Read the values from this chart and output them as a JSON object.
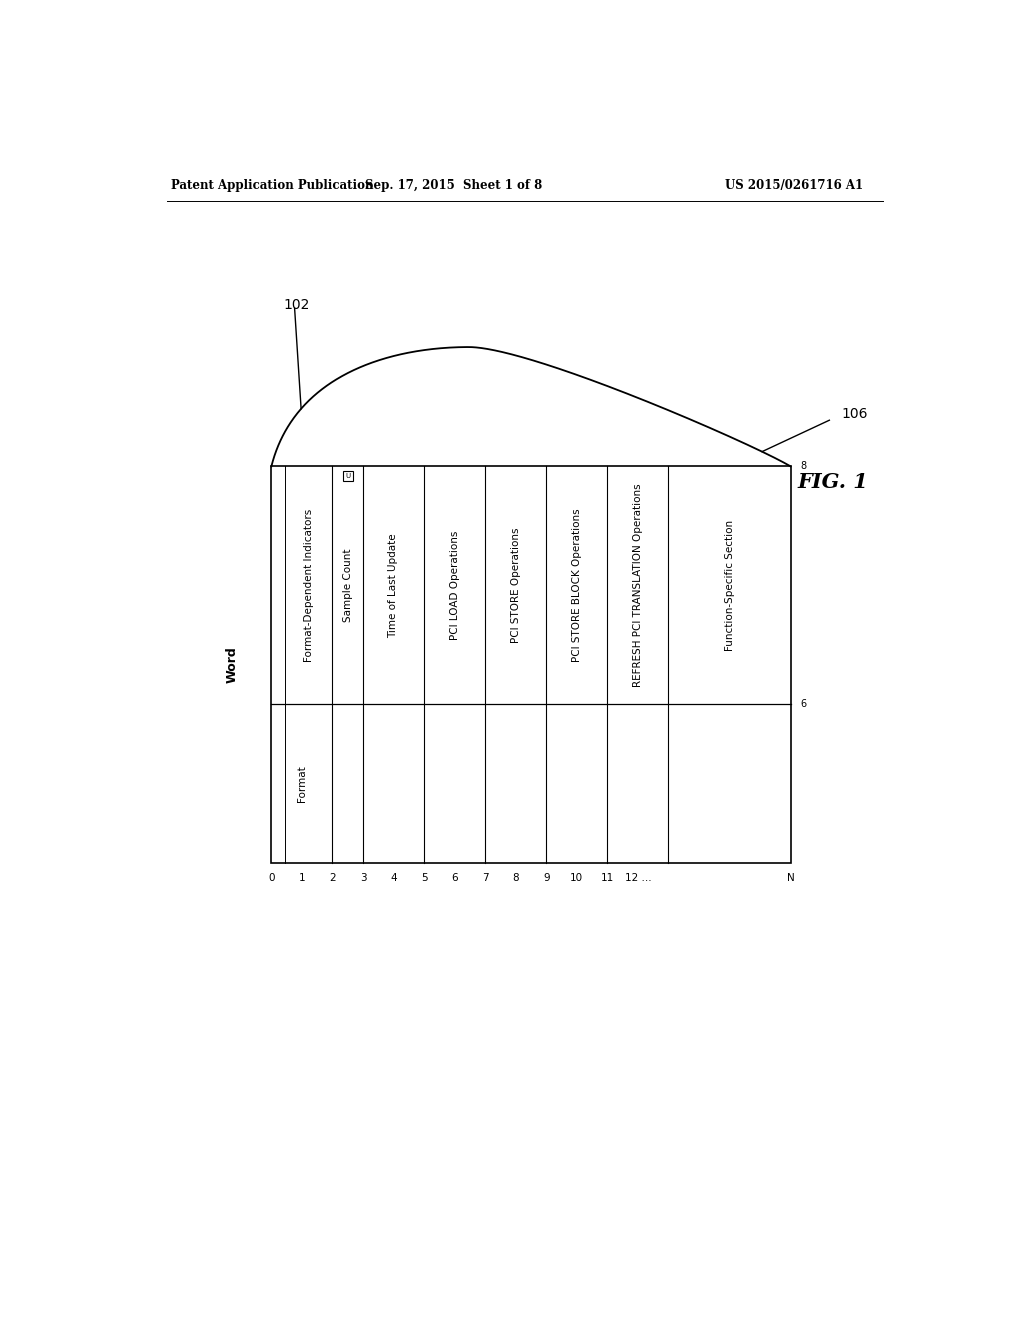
{
  "header_left": "Patent Application Publication",
  "header_mid": "Sep. 17, 2015  Sheet 1 of 8",
  "header_right": "US 2015/0261716 A1",
  "fig_label": "FIG. 1",
  "label_102": "102",
  "label_106": "106",
  "label_right_top": "8",
  "label_right_bot": "6",
  "word_label": "Word",
  "x_tick_labels": [
    "0",
    "1",
    "2",
    "3",
    "4",
    "5",
    "6",
    "7",
    "8",
    "9",
    "10",
    "11",
    "12 ...",
    "N"
  ],
  "background_color": "#ffffff",
  "line_color": "#000000",
  "text_color": "#000000",
  "columns": [
    {
      "label_top": "Format-Dependent Indicators",
      "label_bot": "Format",
      "units": 2
    },
    {
      "label_top": "Sample Count",
      "label_bot": "",
      "units": 1
    },
    {
      "label_top": "Time of Last Update",
      "label_bot": "",
      "units": 2
    },
    {
      "label_top": "PCI LOAD Operations",
      "label_bot": "",
      "units": 2
    },
    {
      "label_top": "PCI STORE Operations",
      "label_bot": "",
      "units": 2
    },
    {
      "label_top": "PCI STORE BLOCK Operations",
      "label_bot": "",
      "units": 2
    },
    {
      "label_top": "REFRESH PCI TRANSLATION Operations",
      "label_bot": "",
      "units": 2
    },
    {
      "label_top": "Function-Specific Section",
      "label_bot": "",
      "units": 4
    }
  ],
  "total_units": 17
}
